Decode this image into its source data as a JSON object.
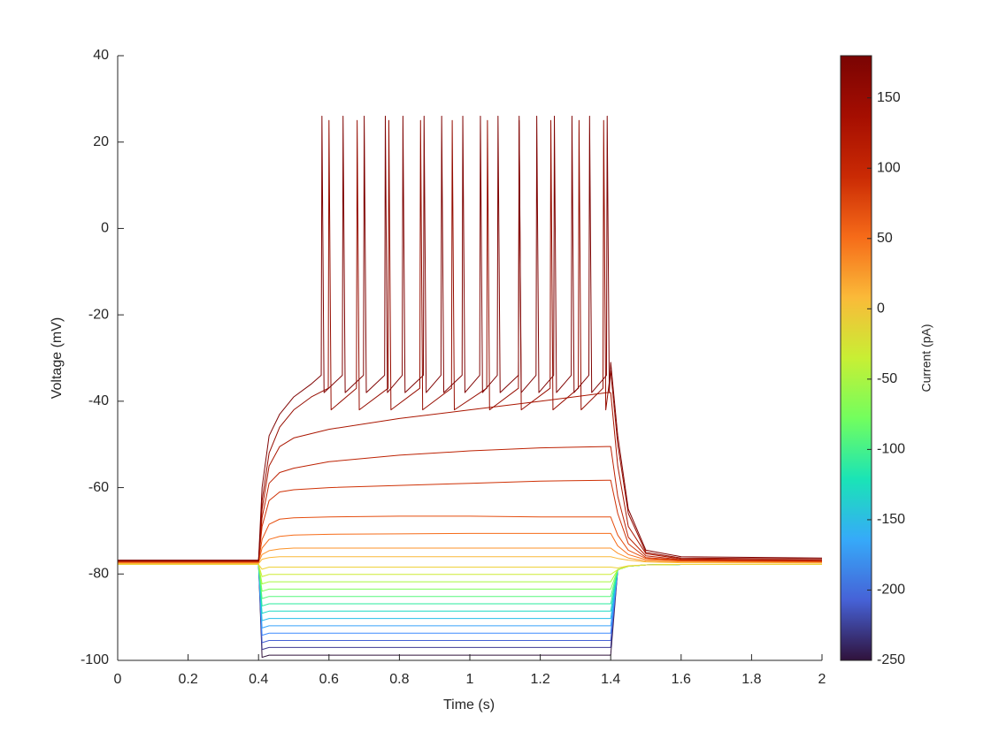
{
  "chart_data": {
    "type": "line",
    "xlabel": "Time (s)",
    "ylabel": "Voltage (mV)",
    "xlim": [
      0,
      2
    ],
    "xticks": [
      0,
      0.2,
      0.4,
      0.6,
      0.8,
      1,
      1.2,
      1.4,
      1.6,
      1.8,
      2
    ],
    "ylim": [
      -100,
      40
    ],
    "yticks": [
      -100,
      -80,
      -60,
      -40,
      -20,
      0,
      20,
      40
    ],
    "x": [
      0,
      0.39,
      0.4,
      0.41,
      0.43,
      0.46,
      0.5,
      0.6,
      0.8,
      1.0,
      1.2,
      1.39,
      1.4,
      1.42,
      1.45,
      1.5,
      1.6,
      2.0
    ],
    "series": [
      {
        "color": "#30123b",
        "values": [
          -77.8,
          -77.8,
          -77.8,
          -99.3,
          -98.8,
          -98.8,
          -98.8,
          -98.8,
          -98.8,
          -98.8,
          -98.8,
          -98.8,
          -98.8,
          -79,
          -78.2,
          -77.9,
          -77.8,
          -77.8
        ]
      },
      {
        "color": "#3e3992",
        "values": [
          -77.8,
          -77.8,
          -77.8,
          -97.5,
          -97,
          -97,
          -97,
          -97,
          -97,
          -97,
          -97,
          -97,
          -97,
          -79,
          -78.2,
          -77.9,
          -77.8,
          -77.8
        ]
      },
      {
        "color": "#4560d4",
        "values": [
          -77.8,
          -77.8,
          -77.8,
          -95.9,
          -95.4,
          -95.4,
          -95.4,
          -95.4,
          -95.4,
          -95.4,
          -95.4,
          -95.4,
          -95.4,
          -79,
          -78.2,
          -77.9,
          -77.8,
          -77.8
        ]
      },
      {
        "color": "#3f8cfe",
        "values": [
          -77.8,
          -77.8,
          -77.8,
          -94.2,
          -93.7,
          -93.7,
          -93.7,
          -93.7,
          -93.7,
          -93.7,
          -93.7,
          -93.7,
          -93.7,
          -79,
          -78.2,
          -77.9,
          -77.8,
          -77.8
        ]
      },
      {
        "color": "#38a4fb",
        "values": [
          -77.8,
          -77.8,
          -77.8,
          -92.5,
          -92,
          -92,
          -92,
          -92,
          -92,
          -92,
          -92,
          -92,
          -92,
          -79,
          -78.2,
          -77.9,
          -77.8,
          -77.8
        ]
      },
      {
        "color": "#26bde9",
        "values": [
          -77.8,
          -77.8,
          -77.8,
          -90.8,
          -90.3,
          -90.3,
          -90.3,
          -90.3,
          -90.3,
          -90.3,
          -90.3,
          -90.3,
          -90.3,
          -79,
          -78.2,
          -77.9,
          -77.8,
          -77.8
        ]
      },
      {
        "color": "#1bd9c4",
        "values": [
          -77.8,
          -77.8,
          -77.8,
          -89.1,
          -88.6,
          -88.6,
          -88.6,
          -88.6,
          -88.6,
          -88.6,
          -88.6,
          -88.6,
          -88.6,
          -79,
          -78.2,
          -77.9,
          -77.8,
          -77.8
        ]
      },
      {
        "color": "#2aeb9e",
        "values": [
          -77.8,
          -77.8,
          -77.8,
          -87.4,
          -86.9,
          -86.9,
          -86.9,
          -86.9,
          -86.9,
          -86.9,
          -86.9,
          -86.9,
          -86.9,
          -79,
          -78.2,
          -77.9,
          -77.8,
          -77.8
        ]
      },
      {
        "color": "#55f87a",
        "values": [
          -77.8,
          -77.8,
          -77.8,
          -85.7,
          -85.2,
          -85.2,
          -85.2,
          -85.2,
          -85.2,
          -85.2,
          -85.2,
          -85.2,
          -85.2,
          -79,
          -78.2,
          -77.9,
          -77.8,
          -77.8
        ]
      },
      {
        "color": "#7ffe5b",
        "values": [
          -77.8,
          -77.8,
          -77.8,
          -84,
          -83.5,
          -83.5,
          -83.5,
          -83.5,
          -83.5,
          -83.5,
          -83.5,
          -83.5,
          -83.5,
          -79,
          -78.2,
          -77.9,
          -77.8,
          -77.8
        ]
      },
      {
        "color": "#a8f83d",
        "values": [
          -77.8,
          -77.8,
          -77.8,
          -82.3,
          -81.8,
          -81.8,
          -81.8,
          -81.8,
          -81.8,
          -81.8,
          -81.8,
          -81.8,
          -81.8,
          -79,
          -78.2,
          -77.9,
          -77.8,
          -77.8
        ]
      },
      {
        "color": "#cdec34",
        "values": [
          -77.8,
          -77.8,
          -77.8,
          -80.6,
          -80.1,
          -80.1,
          -80.1,
          -80.1,
          -80.1,
          -80.1,
          -80.1,
          -80.1,
          -80.1,
          -79,
          -78.2,
          -77.9,
          -77.8,
          -77.8
        ]
      },
      {
        "color": "#eed23a",
        "values": [
          -77.8,
          -77.8,
          -77.8,
          -78.9,
          -78.4,
          -78.4,
          -78.4,
          -78.4,
          -78.4,
          -78.4,
          -78.4,
          -78.4,
          -78.4,
          -78.6,
          -78.1,
          -77.9,
          -77.8,
          -77.8
        ]
      },
      {
        "color": "#fbb838",
        "values": [
          -77.6,
          -77.6,
          -77.6,
          -76.6,
          -76.2,
          -76,
          -76,
          -76,
          -76,
          -76,
          -76,
          -76,
          -76,
          -76.4,
          -76.8,
          -77.2,
          -77.4,
          -77.5
        ]
      },
      {
        "color": "#fc9329",
        "values": [
          -77.4,
          -77.4,
          -77.4,
          -75.5,
          -74.6,
          -74.2,
          -74,
          -74,
          -74,
          -74,
          -74,
          -74,
          -74,
          -75.2,
          -76.3,
          -77,
          -77.2,
          -77.3
        ]
      },
      {
        "color": "#f66c19",
        "values": [
          -77.3,
          -77.3,
          -77.3,
          -74,
          -72,
          -71.3,
          -71,
          -70.8,
          -70.7,
          -70.6,
          -70.6,
          -70.6,
          -70.6,
          -73.5,
          -75.5,
          -76.7,
          -77,
          -77.2
        ]
      },
      {
        "color": "#e54d0e",
        "values": [
          -77.2,
          -77.2,
          -77.2,
          -72,
          -68.5,
          -67.3,
          -67,
          -66.8,
          -66.6,
          -66.6,
          -66.8,
          -66.8,
          -66.8,
          -71,
          -74.5,
          -76.4,
          -76.9,
          -77.1
        ]
      },
      {
        "color": "#cf3206",
        "values": [
          -77.1,
          -77.1,
          -77.1,
          -69,
          -63,
          -61,
          -60.5,
          -60,
          -59.5,
          -59,
          -58.5,
          -58.3,
          -58.3,
          -66,
          -73,
          -76.2,
          -76.8,
          -77
        ]
      },
      {
        "color": "#bd2203",
        "values": [
          -77,
          -77,
          -77,
          -67,
          -59,
          -56.5,
          -55.5,
          -54,
          -52.5,
          -51.5,
          -50.8,
          -50.5,
          -50.5,
          -62,
          -71.5,
          -75.8,
          -76.7,
          -76.9
        ]
      },
      {
        "color": "#aa1601",
        "values": [
          -77,
          -77,
          -77,
          -65,
          -55,
          -50.5,
          -48.5,
          -46.5,
          -44,
          -42,
          -40,
          -38,
          -38,
          -55,
          -69,
          -75.3,
          -76.5,
          -76.8
        ]
      },
      {
        "color": "#960d01",
        "x": [
          0,
          0.39,
          0.4,
          0.41,
          0.43,
          0.46,
          0.5,
          0.55,
          0.598,
          0.6,
          0.606,
          0.678,
          0.68,
          0.686,
          0.768,
          0.77,
          0.776,
          0.858,
          0.86,
          0.866,
          0.948,
          0.95,
          0.956,
          1.048,
          1.05,
          1.056,
          1.138,
          1.14,
          1.146,
          1.228,
          1.23,
          1.236,
          1.308,
          1.31,
          1.316,
          1.378,
          1.38,
          1.386,
          1.4,
          1.42,
          1.45,
          1.5,
          1.6,
          2.0
        ],
        "values": [
          -77,
          -77,
          -77,
          -63,
          -52,
          -46,
          -42,
          -39,
          -37,
          25,
          -42,
          -37,
          25,
          -42,
          -37,
          25,
          -42,
          -37,
          25,
          -42,
          -37,
          25,
          -42,
          -37,
          25,
          -42,
          -37,
          25,
          -42,
          -37,
          25,
          -42,
          -37,
          25,
          -42,
          -37,
          25,
          -42,
          -33,
          -50,
          -66,
          -75,
          -76.3,
          -76.5
        ]
      },
      {
        "color": "#800504",
        "x": [
          0,
          0.39,
          0.4,
          0.41,
          0.43,
          0.46,
          0.5,
          0.55,
          0.578,
          0.58,
          0.586,
          0.638,
          0.64,
          0.646,
          0.698,
          0.7,
          0.706,
          0.758,
          0.76,
          0.766,
          0.808,
          0.81,
          0.816,
          0.868,
          0.87,
          0.876,
          0.918,
          0.92,
          0.926,
          0.978,
          0.98,
          0.986,
          1.028,
          1.03,
          1.036,
          1.078,
          1.08,
          1.086,
          1.138,
          1.14,
          1.146,
          1.188,
          1.19,
          1.196,
          1.238,
          1.24,
          1.246,
          1.288,
          1.29,
          1.296,
          1.338,
          1.34,
          1.346,
          1.388,
          1.39,
          1.396,
          1.4,
          1.42,
          1.45,
          1.5,
          1.6,
          2.0
        ],
        "values": [
          -76.8,
          -76.8,
          -76.8,
          -60,
          -48,
          -43,
          -39,
          -36,
          -34,
          26,
          -38,
          -34,
          26,
          -38,
          -34,
          26,
          -38,
          -34,
          26,
          -38,
          -34,
          26,
          -38,
          -34,
          26,
          -38,
          -34,
          26,
          -38,
          -34,
          26,
          -38,
          -34,
          26,
          -38,
          -34,
          26,
          -38,
          -34,
          26,
          -38,
          -34,
          26,
          -38,
          -34,
          26,
          -38,
          -34,
          26,
          -38,
          -34,
          26,
          -38,
          -34,
          26,
          -38,
          -31,
          -48,
          -65,
          -74.5,
          -76,
          -76.3
        ]
      }
    ],
    "colorbar": {
      "label": "Current (pA)",
      "lim": [
        -250,
        180
      ],
      "ticks": [
        -250,
        -200,
        -150,
        -100,
        -50,
        0,
        50,
        100,
        150
      ],
      "colors": [
        "#30123b",
        "#4662d7",
        "#36aaf9",
        "#1ae4b6",
        "#72fe5e",
        "#c8ef34",
        "#faba39",
        "#f66b19",
        "#ca2a04",
        "#a50e01",
        "#7a0403"
      ]
    }
  }
}
